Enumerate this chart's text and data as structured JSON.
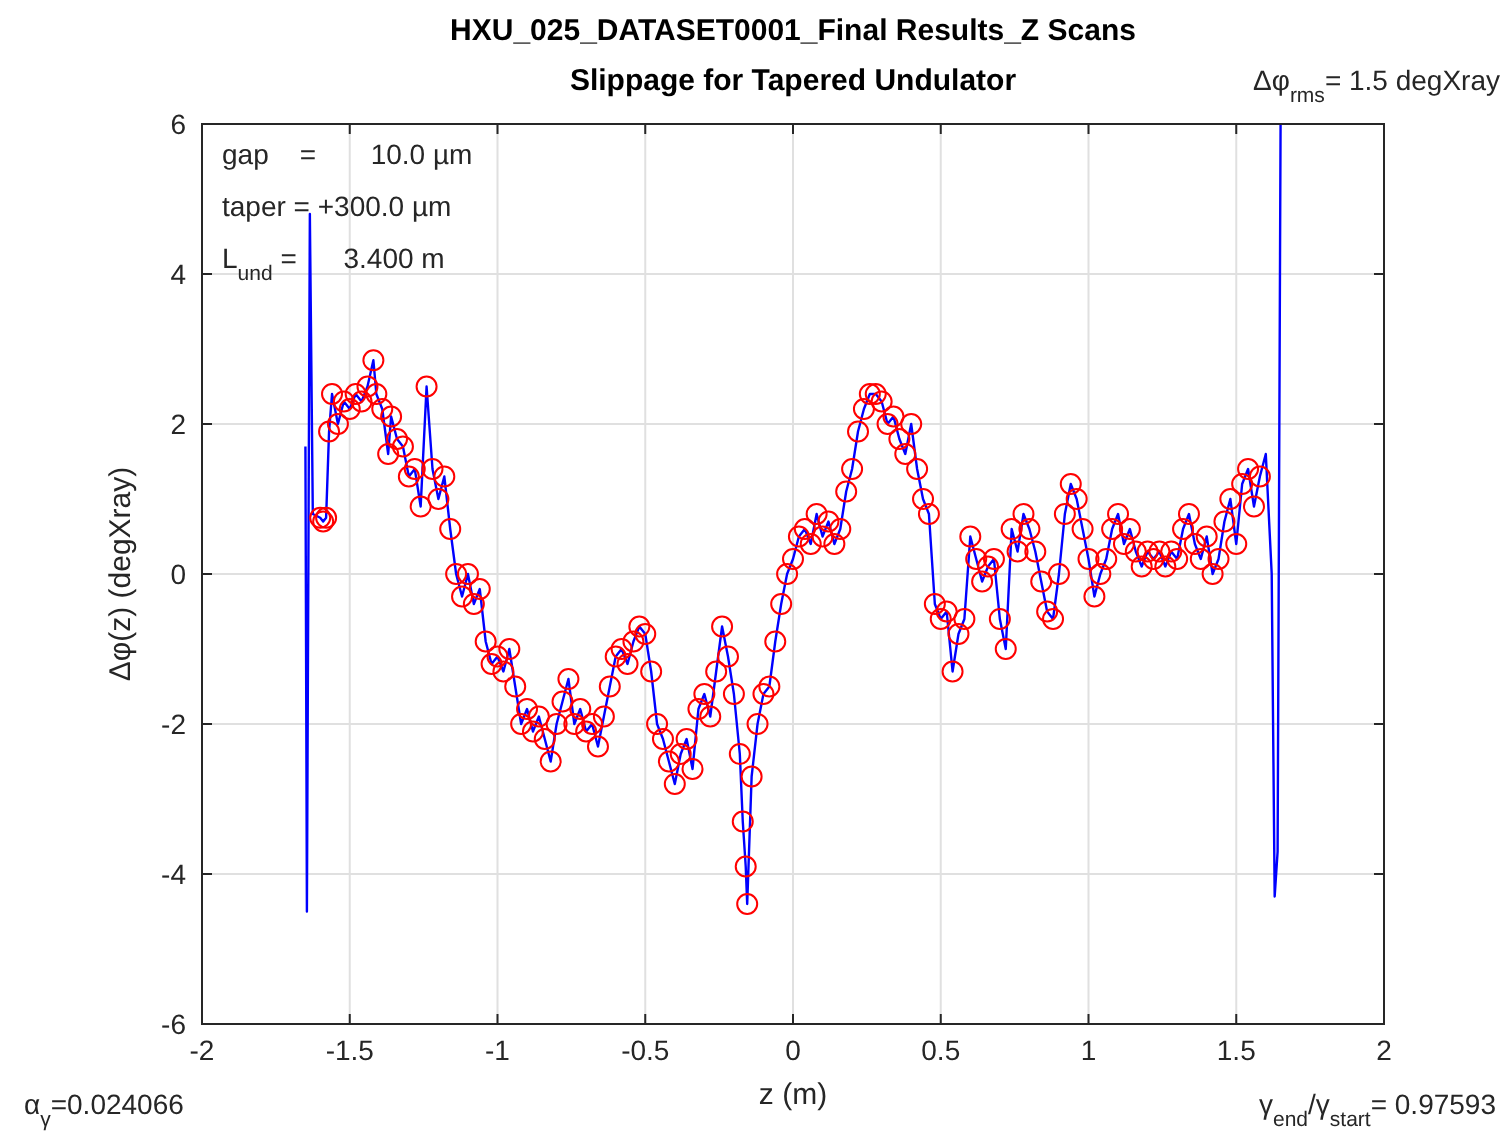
{
  "chart_data": {
    "type": "line",
    "title": "HXU_025_DATASET0001_Final Results_Z Scans",
    "subtitle": "Slippage for Tapered Undulator",
    "xlabel": "z (m)",
    "ylabel": "Δφ(z) (degXray)",
    "xlim": [
      -2,
      2
    ],
    "ylim": [
      -6,
      6
    ],
    "xticks": [
      -2,
      -1.5,
      -1,
      -0.5,
      0,
      0.5,
      1,
      1.5,
      2
    ],
    "yticks": [
      -6,
      -4,
      -2,
      0,
      2,
      4,
      6
    ],
    "grid": true,
    "annotations": [
      "gap    =       10.0 µm",
      "taper = +300.0 µm",
      "L$_{und}$ =      3.400 m",
      "Δφ$_{rms}$= 1.5 degXray",
      "α$_{γ}$=0.024066",
      "γ$_{end}$/γ$_{start}$= 0.97593"
    ],
    "series": [
      {
        "color": "#0000ff",
        "marker": "none",
        "line_style": "solid",
        "x": [
          -1.65,
          -1.645,
          -1.635,
          -1.625,
          -1.6,
          -1.59,
          -1.58,
          -1.57,
          -1.56,
          -1.54,
          -1.52,
          -1.5,
          -1.48,
          -1.46,
          -1.44,
          -1.42,
          -1.41,
          -1.39,
          -1.37,
          -1.36,
          -1.34,
          -1.32,
          -1.3,
          -1.28,
          -1.26,
          -1.24,
          -1.22,
          -1.2,
          -1.18,
          -1.16,
          -1.14,
          -1.12,
          -1.1,
          -1.08,
          -1.06,
          -1.04,
          -1.02,
          -1,
          -0.98,
          -0.96,
          -0.94,
          -0.92,
          -0.9,
          -0.88,
          -0.86,
          -0.84,
          -0.82,
          -0.8,
          -0.78,
          -0.76,
          -0.74,
          -0.72,
          -0.7,
          -0.68,
          -0.66,
          -0.64,
          -0.62,
          -0.6,
          -0.58,
          -0.56,
          -0.54,
          -0.52,
          -0.5,
          -0.48,
          -0.46,
          -0.44,
          -0.42,
          -0.4,
          -0.38,
          -0.36,
          -0.34,
          -0.32,
          -0.3,
          -0.28,
          -0.26,
          -0.24,
          -0.22,
          -0.2,
          -0.18,
          -0.17,
          -0.16,
          -0.155,
          -0.14,
          -0.12,
          -0.1,
          -0.08,
          -0.06,
          -0.04,
          -0.02,
          0,
          0.02,
          0.04,
          0.06,
          0.08,
          0.1,
          0.12,
          0.14,
          0.16,
          0.18,
          0.2,
          0.22,
          0.24,
          0.26,
          0.28,
          0.3,
          0.32,
          0.34,
          0.36,
          0.38,
          0.4,
          0.42,
          0.44,
          0.46,
          0.48,
          0.5,
          0.52,
          0.54,
          0.56,
          0.58,
          0.6,
          0.62,
          0.64,
          0.66,
          0.68,
          0.7,
          0.72,
          0.74,
          0.76,
          0.78,
          0.8,
          0.82,
          0.84,
          0.86,
          0.88,
          0.9,
          0.92,
          0.94,
          0.96,
          0.98,
          1,
          1.02,
          1.04,
          1.06,
          1.08,
          1.1,
          1.12,
          1.14,
          1.16,
          1.18,
          1.2,
          1.22,
          1.24,
          1.26,
          1.28,
          1.3,
          1.32,
          1.34,
          1.36,
          1.38,
          1.4,
          1.42,
          1.44,
          1.46,
          1.48,
          1.5,
          1.52,
          1.54,
          1.56,
          1.58,
          1.6,
          1.62,
          1.63,
          1.64,
          1.65
        ],
        "values": [
          1.7,
          -4.5,
          4.8,
          0.8,
          0.75,
          0.7,
          0.75,
          1.9,
          2.4,
          2.0,
          2.3,
          2.2,
          2.4,
          2.3,
          2.5,
          2.85,
          2.4,
          2.2,
          1.6,
          2.1,
          1.8,
          1.7,
          1.3,
          1.4,
          0.9,
          2.5,
          1.4,
          1.0,
          1.3,
          0.6,
          0.0,
          -0.3,
          0.0,
          -0.4,
          -0.2,
          -0.9,
          -1.2,
          -1.1,
          -1.3,
          -1.0,
          -1.5,
          -2.0,
          -1.8,
          -2.1,
          -1.9,
          -2.2,
          -2.5,
          -2.0,
          -1.7,
          -1.4,
          -2.0,
          -1.8,
          -2.1,
          -2.0,
          -2.3,
          -1.9,
          -1.5,
          -1.1,
          -1.0,
          -1.2,
          -0.9,
          -0.7,
          -0.8,
          -1.3,
          -2.0,
          -2.2,
          -2.5,
          -2.8,
          -2.4,
          -2.2,
          -2.6,
          -1.8,
          -1.6,
          -1.9,
          -1.3,
          -0.7,
          -1.1,
          -1.6,
          -2.4,
          -3.3,
          -3.9,
          -4.4,
          -2.7,
          -2.0,
          -1.6,
          -1.5,
          -0.9,
          -0.4,
          0.0,
          0.2,
          0.5,
          0.6,
          0.4,
          0.8,
          0.5,
          0.7,
          0.4,
          0.6,
          1.1,
          1.4,
          1.9,
          2.2,
          2.4,
          2.4,
          2.3,
          2.0,
          2.1,
          1.8,
          1.6,
          2.0,
          1.4,
          1.0,
          0.8,
          -0.4,
          -0.6,
          -0.5,
          -1.3,
          -0.8,
          -0.6,
          0.5,
          0.2,
          -0.1,
          0.1,
          0.2,
          -0.6,
          -1.0,
          0.6,
          0.3,
          0.8,
          0.6,
          0.3,
          -0.1,
          -0.5,
          -0.6,
          0.0,
          0.8,
          1.2,
          1.0,
          0.6,
          0.2,
          -0.3,
          0.0,
          0.2,
          0.6,
          0.8,
          0.4,
          0.6,
          0.3,
          0.1,
          0.3,
          0.2,
          0.3,
          0.1,
          0.3,
          0.2,
          0.6,
          0.8,
          0.4,
          0.2,
          0.5,
          0.0,
          0.2,
          0.7,
          1.0,
          0.4,
          1.2,
          1.4,
          0.9,
          1.3,
          1.6,
          0.0,
          -4.3,
          -3.7,
          6
        ]
      },
      {
        "type": "scatter",
        "color": "#ff0000",
        "marker": "circle",
        "x": [
          -1.6,
          -1.59,
          -1.58,
          -1.57,
          -1.56,
          -1.54,
          -1.52,
          -1.5,
          -1.48,
          -1.46,
          -1.44,
          -1.42,
          -1.41,
          -1.39,
          -1.37,
          -1.36,
          -1.34,
          -1.32,
          -1.3,
          -1.28,
          -1.26,
          -1.24,
          -1.22,
          -1.2,
          -1.18,
          -1.16,
          -1.14,
          -1.12,
          -1.1,
          -1.08,
          -1.06,
          -1.04,
          -1.02,
          -1,
          -0.98,
          -0.96,
          -0.94,
          -0.92,
          -0.9,
          -0.88,
          -0.86,
          -0.84,
          -0.82,
          -0.8,
          -0.78,
          -0.76,
          -0.74,
          -0.72,
          -0.7,
          -0.68,
          -0.66,
          -0.64,
          -0.62,
          -0.6,
          -0.58,
          -0.56,
          -0.54,
          -0.52,
          -0.5,
          -0.48,
          -0.46,
          -0.44,
          -0.42,
          -0.4,
          -0.38,
          -0.36,
          -0.34,
          -0.32,
          -0.3,
          -0.28,
          -0.26,
          -0.24,
          -0.22,
          -0.2,
          -0.18,
          -0.17,
          -0.16,
          -0.155,
          -0.14,
          -0.12,
          -0.1,
          -0.08,
          -0.06,
          -0.04,
          -0.02,
          0,
          0.02,
          0.04,
          0.06,
          0.08,
          0.1,
          0.12,
          0.14,
          0.16,
          0.18,
          0.2,
          0.22,
          0.24,
          0.26,
          0.28,
          0.3,
          0.32,
          0.34,
          0.36,
          0.38,
          0.4,
          0.42,
          0.44,
          0.46,
          0.48,
          0.5,
          0.52,
          0.54,
          0.56,
          0.58,
          0.6,
          0.62,
          0.64,
          0.66,
          0.68,
          0.7,
          0.72,
          0.74,
          0.76,
          0.78,
          0.8,
          0.82,
          0.84,
          0.86,
          0.88,
          0.9,
          0.92,
          0.94,
          0.96,
          0.98,
          1,
          1.02,
          1.04,
          1.06,
          1.08,
          1.1,
          1.12,
          1.14,
          1.16,
          1.18,
          1.2,
          1.22,
          1.24,
          1.26,
          1.28,
          1.3,
          1.32,
          1.34,
          1.36,
          1.38,
          1.4,
          1.42,
          1.44,
          1.46,
          1.48,
          1.5,
          1.52,
          1.54,
          1.56,
          1.58
        ],
        "values": [
          0.75,
          0.7,
          0.75,
          1.9,
          2.4,
          2.0,
          2.3,
          2.2,
          2.4,
          2.3,
          2.5,
          2.85,
          2.4,
          2.2,
          1.6,
          2.1,
          1.8,
          1.7,
          1.3,
          1.4,
          0.9,
          2.5,
          1.4,
          1.0,
          1.3,
          0.6,
          0.0,
          -0.3,
          0.0,
          -0.4,
          -0.2,
          -0.9,
          -1.2,
          -1.1,
          -1.3,
          -1.0,
          -1.5,
          -2.0,
          -1.8,
          -2.1,
          -1.9,
          -2.2,
          -2.5,
          -2.0,
          -1.7,
          -1.4,
          -2.0,
          -1.8,
          -2.1,
          -2.0,
          -2.3,
          -1.9,
          -1.5,
          -1.1,
          -1.0,
          -1.2,
          -0.9,
          -0.7,
          -0.8,
          -1.3,
          -2.0,
          -2.2,
          -2.5,
          -2.8,
          -2.4,
          -2.2,
          -2.6,
          -1.8,
          -1.6,
          -1.9,
          -1.3,
          -0.7,
          -1.1,
          -1.6,
          -2.4,
          -3.3,
          -3.9,
          -4.4,
          -2.7,
          -2.0,
          -1.6,
          -1.5,
          -0.9,
          -0.4,
          0.0,
          0.2,
          0.5,
          0.6,
          0.4,
          0.8,
          0.5,
          0.7,
          0.4,
          0.6,
          1.1,
          1.4,
          1.9,
          2.2,
          2.4,
          2.4,
          2.3,
          2.0,
          2.1,
          1.8,
          1.6,
          2.0,
          1.4,
          1.0,
          0.8,
          -0.4,
          -0.6,
          -0.5,
          -1.3,
          -0.8,
          -0.6,
          0.5,
          0.2,
          -0.1,
          0.1,
          0.2,
          -0.6,
          -1.0,
          0.6,
          0.3,
          0.8,
          0.6,
          0.3,
          -0.1,
          -0.5,
          -0.6,
          0.0,
          0.8,
          1.2,
          1.0,
          0.6,
          0.2,
          -0.3,
          0.0,
          0.2,
          0.6,
          0.8,
          0.4,
          0.6,
          0.3,
          0.1,
          0.3,
          0.2,
          0.3,
          0.1,
          0.3,
          0.2,
          0.6,
          0.8,
          0.4,
          0.2,
          0.5,
          0.0,
          0.2,
          0.7,
          1.0,
          0.4,
          1.2,
          1.4,
          0.9,
          1.3
        ]
      }
    ]
  }
}
